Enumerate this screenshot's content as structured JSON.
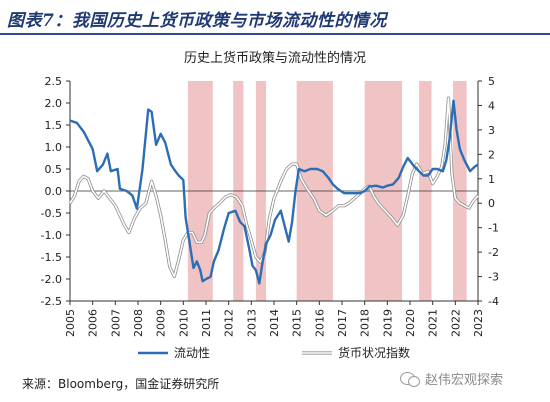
{
  "figure": {
    "title": "图表7：我国历史上货币政策与市场流动性的情况",
    "source": "来源：Bloomberg，国金证券研究所",
    "watermark": "赵伟宏观探索"
  },
  "chart_data": {
    "type": "line",
    "title": "历史上货币政策与流动性的情况",
    "xlabel": "",
    "ylabel_left": "",
    "ylabel_right": "",
    "xlim": [
      2005,
      2023
    ],
    "ylim_left": [
      -2.5,
      2.5
    ],
    "ylim_right": [
      -4,
      5
    ],
    "yticks_left": [
      "2.5",
      "2.0",
      "1.5",
      "1.0",
      "0.5",
      "0.0",
      "-0.5",
      "-1.0",
      "-1.5",
      "-2.0",
      "-2.5"
    ],
    "yticks_right": [
      "5",
      "4",
      "3",
      "2",
      "1",
      "0",
      "-1",
      "-2",
      "-3",
      "-4"
    ],
    "xticks": [
      "2005",
      "2006",
      "2007",
      "2008",
      "2009",
      "2010",
      "2011",
      "2012",
      "2013",
      "2014",
      "2015",
      "2016",
      "2017",
      "2018",
      "2019",
      "2020",
      "2021",
      "2022",
      "2023"
    ],
    "shaded_periods": [
      [
        2010.2,
        2011.3
      ],
      [
        2012.2,
        2012.65
      ],
      [
        2013.2,
        2013.65
      ],
      [
        2015.0,
        2016.6
      ],
      [
        2018.0,
        2019.65
      ],
      [
        2020.4,
        2020.95
      ],
      [
        2021.9,
        2022.5
      ]
    ],
    "grid": false,
    "legend_position": "bottom",
    "series": [
      {
        "name": "流动性",
        "axis": "left",
        "color": "#2d6db5",
        "points": [
          [
            2005.0,
            1.6
          ],
          [
            2005.3,
            1.55
          ],
          [
            2005.6,
            1.35
          ],
          [
            2005.85,
            1.1
          ],
          [
            2006.0,
            0.95
          ],
          [
            2006.2,
            0.45
          ],
          [
            2006.45,
            0.6
          ],
          [
            2006.65,
            0.85
          ],
          [
            2006.8,
            0.45
          ],
          [
            2007.1,
            0.5
          ],
          [
            2007.2,
            0.05
          ],
          [
            2007.5,
            0.0
          ],
          [
            2007.75,
            -0.1
          ],
          [
            2007.95,
            -0.4
          ],
          [
            2008.2,
            0.5
          ],
          [
            2008.45,
            1.85
          ],
          [
            2008.6,
            1.8
          ],
          [
            2008.8,
            1.05
          ],
          [
            2009.0,
            1.3
          ],
          [
            2009.2,
            1.1
          ],
          [
            2009.45,
            0.6
          ],
          [
            2009.65,
            0.45
          ],
          [
            2009.8,
            0.35
          ],
          [
            2010.0,
            0.25
          ],
          [
            2010.1,
            -0.6
          ],
          [
            2010.3,
            -1.25
          ],
          [
            2010.45,
            -1.75
          ],
          [
            2010.6,
            -1.6
          ],
          [
            2010.75,
            -1.8
          ],
          [
            2010.85,
            -2.05
          ],
          [
            2011.0,
            -2.0
          ],
          [
            2011.2,
            -1.95
          ],
          [
            2011.35,
            -1.6
          ],
          [
            2011.55,
            -1.35
          ],
          [
            2011.8,
            -0.85
          ],
          [
            2012.0,
            -0.5
          ],
          [
            2012.3,
            -0.45
          ],
          [
            2012.5,
            -0.7
          ],
          [
            2012.7,
            -0.8
          ],
          [
            2012.9,
            -1.3
          ],
          [
            2013.05,
            -1.7
          ],
          [
            2013.2,
            -1.8
          ],
          [
            2013.35,
            -2.1
          ],
          [
            2013.5,
            -1.6
          ],
          [
            2013.65,
            -1.2
          ],
          [
            2013.85,
            -1.0
          ],
          [
            2014.05,
            -0.65
          ],
          [
            2014.3,
            -0.45
          ],
          [
            2014.5,
            -0.85
          ],
          [
            2014.65,
            -1.15
          ],
          [
            2014.8,
            -0.7
          ],
          [
            2014.95,
            0.0
          ],
          [
            2015.1,
            0.5
          ],
          [
            2015.35,
            0.45
          ],
          [
            2015.6,
            0.5
          ],
          [
            2015.9,
            0.5
          ],
          [
            2016.15,
            0.45
          ],
          [
            2016.4,
            0.3
          ],
          [
            2016.6,
            0.15
          ],
          [
            2016.8,
            0.05
          ],
          [
            2017.1,
            -0.05
          ],
          [
            2017.4,
            -0.05
          ],
          [
            2017.8,
            -0.05
          ],
          [
            2018.0,
            0.0
          ],
          [
            2018.2,
            0.1
          ],
          [
            2018.5,
            0.12
          ],
          [
            2018.8,
            0.08
          ],
          [
            2019.0,
            0.12
          ],
          [
            2019.25,
            0.15
          ],
          [
            2019.5,
            0.3
          ],
          [
            2019.7,
            0.55
          ],
          [
            2019.9,
            0.75
          ],
          [
            2020.05,
            0.65
          ],
          [
            2020.2,
            0.55
          ],
          [
            2020.4,
            0.45
          ],
          [
            2020.6,
            0.35
          ],
          [
            2020.8,
            0.35
          ],
          [
            2021.0,
            0.5
          ],
          [
            2021.2,
            0.5
          ],
          [
            2021.45,
            0.45
          ],
          [
            2021.6,
            0.7
          ],
          [
            2021.75,
            1.2
          ],
          [
            2021.92,
            2.05
          ],
          [
            2022.05,
            1.4
          ],
          [
            2022.2,
            0.95
          ],
          [
            2022.4,
            0.7
          ],
          [
            2022.65,
            0.45
          ],
          [
            2022.85,
            0.55
          ],
          [
            2023.0,
            0.6
          ]
        ]
      },
      {
        "name": "货币状况指数",
        "axis": "right",
        "color": "#a8a8a8",
        "points": [
          [
            2005.0,
            0.0
          ],
          [
            2005.2,
            0.3
          ],
          [
            2005.4,
            0.9
          ],
          [
            2005.6,
            1.1
          ],
          [
            2005.8,
            1.0
          ],
          [
            2006.0,
            0.5
          ],
          [
            2006.25,
            0.2
          ],
          [
            2006.5,
            0.5
          ],
          [
            2006.75,
            0.2
          ],
          [
            2007.0,
            -0.1
          ],
          [
            2007.2,
            -0.5
          ],
          [
            2007.4,
            -0.9
          ],
          [
            2007.6,
            -1.2
          ],
          [
            2007.85,
            -0.6
          ],
          [
            2008.1,
            -0.2
          ],
          [
            2008.35,
            0.0
          ],
          [
            2008.6,
            0.9
          ],
          [
            2008.8,
            0.3
          ],
          [
            2009.0,
            -0.5
          ],
          [
            2009.2,
            -1.5
          ],
          [
            2009.4,
            -2.6
          ],
          [
            2009.6,
            -3.0
          ],
          [
            2009.8,
            -2.3
          ],
          [
            2010.0,
            -1.5
          ],
          [
            2010.2,
            -1.2
          ],
          [
            2010.4,
            -1.2
          ],
          [
            2010.6,
            -1.6
          ],
          [
            2010.8,
            -1.6
          ],
          [
            2010.95,
            -1.3
          ],
          [
            2011.15,
            -0.4
          ],
          [
            2011.4,
            -0.15
          ],
          [
            2011.6,
            0.0
          ],
          [
            2011.85,
            0.25
          ],
          [
            2012.1,
            0.35
          ],
          [
            2012.35,
            0.25
          ],
          [
            2012.6,
            -0.1
          ],
          [
            2012.8,
            -0.9
          ],
          [
            2013.0,
            -1.5
          ],
          [
            2013.2,
            -2.2
          ],
          [
            2013.4,
            -2.4
          ],
          [
            2013.6,
            -2.0
          ],
          [
            2013.8,
            -0.6
          ],
          [
            2014.0,
            0.2
          ],
          [
            2014.3,
            0.9
          ],
          [
            2014.55,
            1.4
          ],
          [
            2014.8,
            1.6
          ],
          [
            2015.0,
            1.6
          ],
          [
            2015.2,
            1.0
          ],
          [
            2015.45,
            0.6
          ],
          [
            2015.75,
            0.2
          ],
          [
            2016.0,
            -0.3
          ],
          [
            2016.3,
            -0.5
          ],
          [
            2016.6,
            -0.3
          ],
          [
            2016.85,
            -0.1
          ],
          [
            2017.1,
            -0.1
          ],
          [
            2017.3,
            0.0
          ],
          [
            2017.55,
            0.2
          ],
          [
            2017.8,
            0.4
          ],
          [
            2018.0,
            0.6
          ],
          [
            2018.2,
            0.7
          ],
          [
            2018.4,
            0.3
          ],
          [
            2018.6,
            0.0
          ],
          [
            2018.8,
            -0.2
          ],
          [
            2019.0,
            -0.4
          ],
          [
            2019.2,
            -0.6
          ],
          [
            2019.45,
            -0.9
          ],
          [
            2019.7,
            -0.5
          ],
          [
            2019.9,
            0.3
          ],
          [
            2020.1,
            1.2
          ],
          [
            2020.3,
            1.6
          ],
          [
            2020.55,
            1.2
          ],
          [
            2020.8,
            1.3
          ],
          [
            2021.0,
            0.8
          ],
          [
            2021.2,
            1.1
          ],
          [
            2021.4,
            1.5
          ],
          [
            2021.55,
            2.4
          ],
          [
            2021.7,
            4.3
          ],
          [
            2021.85,
            1.2
          ],
          [
            2022.0,
            0.2
          ],
          [
            2022.2,
            0.0
          ],
          [
            2022.4,
            -0.1
          ],
          [
            2022.6,
            -0.2
          ],
          [
            2022.8,
            0.1
          ],
          [
            2023.0,
            0.3
          ]
        ]
      }
    ]
  }
}
